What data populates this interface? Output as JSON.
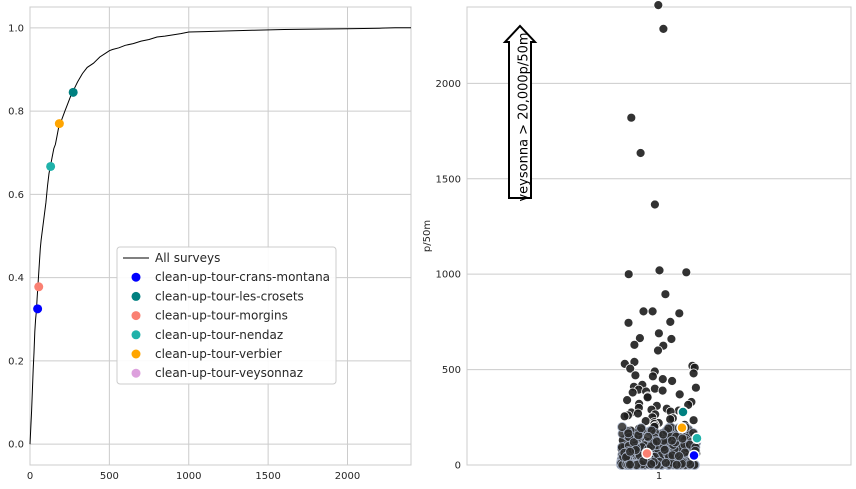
{
  "chart_data": [
    {
      "type": "line",
      "xlim": [
        0,
        2400
      ],
      "ylim": [
        -0.05,
        1.05
      ],
      "xticks": [
        "0",
        "500",
        "1000",
        "1500",
        "2000"
      ],
      "yticks": [
        "0.0",
        "0.2",
        "0.4",
        "0.6",
        "0.8",
        "1.0"
      ],
      "grid": true,
      "legend_position": "center",
      "series": [
        {
          "name": "All surveys",
          "color": "#000000",
          "x": [
            0,
            5,
            10,
            15,
            20,
            25,
            30,
            35,
            40,
            45,
            50,
            55,
            60,
            65,
            70,
            80,
            90,
            100,
            110,
            120,
            130,
            140,
            150,
            160,
            170,
            180,
            190,
            200,
            220,
            240,
            260,
            280,
            300,
            330,
            360,
            400,
            440,
            480,
            500,
            520,
            560,
            600,
            650,
            700,
            750,
            800,
            850,
            900,
            950,
            1000,
            1100,
            1200,
            1400,
            1600,
            1800,
            2000,
            2200,
            2300,
            2400
          ],
          "y": [
            0.0,
            0.04,
            0.08,
            0.13,
            0.18,
            0.22,
            0.27,
            0.3,
            0.32,
            0.35,
            0.38,
            0.41,
            0.44,
            0.47,
            0.49,
            0.52,
            0.55,
            0.58,
            0.62,
            0.65,
            0.67,
            0.69,
            0.71,
            0.72,
            0.74,
            0.76,
            0.77,
            0.78,
            0.8,
            0.82,
            0.84,
            0.855,
            0.87,
            0.89,
            0.905,
            0.915,
            0.93,
            0.94,
            0.945,
            0.948,
            0.952,
            0.958,
            0.962,
            0.968,
            0.972,
            0.978,
            0.98,
            0.983,
            0.986,
            0.99,
            0.991,
            0.992,
            0.994,
            0.996,
            0.997,
            0.998,
            0.999,
            1.0,
            1.0
          ]
        }
      ],
      "markers": [
        {
          "name": "clean-up-tour-crans-montana",
          "color": "#0000ff",
          "x": 48,
          "y": 0.325
        },
        {
          "name": "clean-up-tour-les-crosets",
          "color": "#008080",
          "x": 272,
          "y": 0.845
        },
        {
          "name": "clean-up-tour-morgins",
          "color": "#fa8072",
          "x": 55,
          "y": 0.378
        },
        {
          "name": "clean-up-tour-nendaz",
          "color": "#20b2aa",
          "x": 130,
          "y": 0.667
        },
        {
          "name": "clean-up-tour-verbier",
          "color": "#ffa500",
          "x": 185,
          "y": 0.77
        },
        {
          "name": "clean-up-tour-veysonnaz",
          "color": "#dda0dd",
          "x": null,
          "y": null
        }
      ]
    },
    {
      "type": "scatter",
      "ylabel": "p/50m",
      "xticks": [
        "1"
      ],
      "yticks": [
        "0",
        "500",
        "1000",
        "1500",
        "2000"
      ],
      "ylim": [
        0,
        2400
      ],
      "grid": true,
      "annotation": "veysonna > 20,000p/50m",
      "background_points": {
        "color": "#1c1c1c",
        "values": [
          2410,
          2285,
          1820,
          1635,
          1365,
          1020,
          1000,
          1010,
          895,
          805,
          805,
          795,
          750,
          745,
          690,
          665,
          660,
          630,
          625,
          600,
          540,
          530,
          520,
          510,
          505,
          490,
          480,
          470,
          465,
          450,
          440,
          420,
          410,
          405,
          400,
          395,
          390,
          385,
          380,
          370,
          360,
          355,
          340,
          330,
          320,
          315,
          310,
          300,
          295,
          290,
          285,
          280,
          275,
          270,
          265,
          260,
          255,
          250,
          245,
          240,
          235,
          230,
          225,
          220,
          215,
          210,
          205,
          200,
          195,
          190,
          185,
          180,
          175,
          170,
          165,
          160,
          155,
          150,
          145,
          140,
          135,
          130,
          125,
          120,
          115,
          110,
          105,
          100,
          95,
          90,
          85,
          80,
          75,
          70,
          65,
          60,
          55,
          50,
          45,
          40,
          35,
          30,
          25,
          20,
          15,
          10,
          5
        ]
      },
      "markers": [
        {
          "name": "clean-up-tour-crans-montana",
          "color": "#0000ff",
          "y": 50
        },
        {
          "name": "clean-up-tour-les-crosets",
          "color": "#008080",
          "y": 278
        },
        {
          "name": "clean-up-tour-morgins",
          "color": "#fa8072",
          "y": 60
        },
        {
          "name": "clean-up-tour-nendaz",
          "color": "#20b2aa",
          "y": 140
        },
        {
          "name": "clean-up-tour-verbier",
          "color": "#ffa500",
          "y": 195
        }
      ]
    }
  ]
}
